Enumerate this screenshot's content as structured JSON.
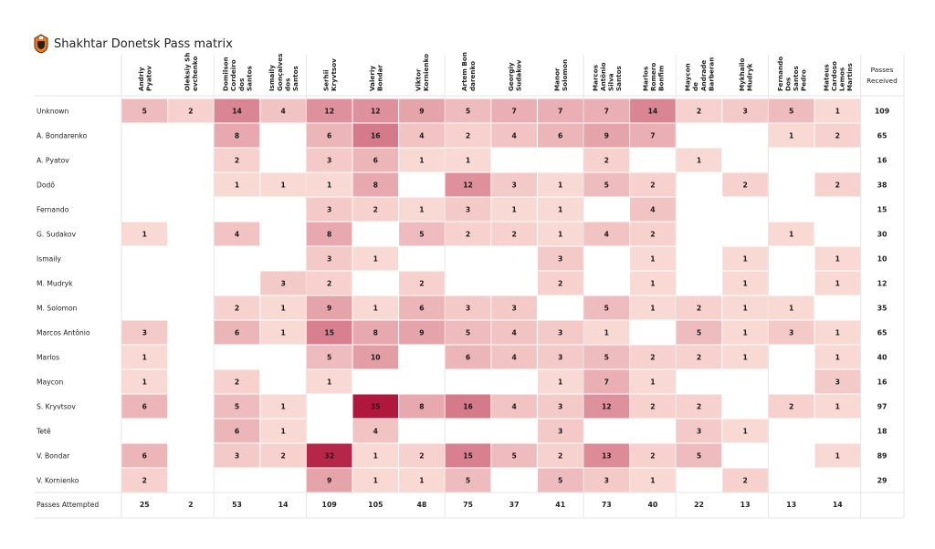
{
  "chart_data": {
    "type": "heatmap",
    "title": "Shakhtar Donetsk Pass matrix",
    "columns": [
      [
        "Andriy",
        "Pyatov"
      ],
      [
        "Oleksiy Sh",
        "evchenko"
      ],
      [
        "Domilson",
        "Cordeiro",
        "dos",
        "Santos"
      ],
      [
        "Ismaily",
        "Gonçalves",
        "dos",
        "Santos"
      ],
      [
        "Serhii",
        "Kryvtsov"
      ],
      [
        "Valeriy",
        "Bondar"
      ],
      [
        "Viktor",
        "Kornienko"
      ],
      [
        "Artem Bon",
        "darenko"
      ],
      [
        "Georgiy",
        "Sudakov"
      ],
      [
        "Manor",
        "Solomon"
      ],
      [
        "Marcos",
        "Antônio",
        "Silva",
        "Santos"
      ],
      [
        "Marlos",
        "Romero",
        "Bonfim"
      ],
      [
        "Maycon",
        "de",
        "Andrade",
        "Barberan"
      ],
      [
        "Mykhailo",
        "Mudryk"
      ],
      [
        "Fernando",
        "Dos",
        "Santos",
        "Pedro"
      ],
      [
        "Mateus",
        "Cardoso",
        "Lemos",
        "Martins"
      ]
    ],
    "received_header": [
      "Passes",
      "Received"
    ],
    "rows": [
      "Unknown",
      "A. Bondarenko",
      "A. Pyatov",
      "Dodô",
      "Fernando",
      "G. Sudakov",
      "Ismaily",
      "M. Mudryk",
      "M. Solomon",
      "Marcos Antônio",
      "Marlos",
      "Maycon",
      "S. Kryvtsov",
      "Tetê",
      "V. Bondar",
      "V. Kornienko"
    ],
    "values": [
      [
        5,
        2,
        14,
        4,
        12,
        12,
        9,
        5,
        7,
        7,
        7,
        14,
        2,
        3,
        5,
        1
      ],
      [
        null,
        null,
        8,
        null,
        6,
        16,
        4,
        2,
        4,
        6,
        9,
        7,
        null,
        null,
        1,
        2
      ],
      [
        null,
        null,
        2,
        null,
        3,
        6,
        1,
        1,
        null,
        null,
        2,
        null,
        1,
        null,
        null,
        null
      ],
      [
        null,
        null,
        1,
        1,
        1,
        8,
        null,
        12,
        3,
        1,
        5,
        2,
        null,
        2,
        null,
        2
      ],
      [
        null,
        null,
        null,
        null,
        3,
        2,
        1,
        3,
        1,
        1,
        null,
        4,
        null,
        null,
        null,
        null
      ],
      [
        1,
        null,
        4,
        null,
        8,
        null,
        5,
        2,
        2,
        1,
        4,
        2,
        null,
        null,
        1,
        null
      ],
      [
        null,
        null,
        null,
        null,
        3,
        1,
        null,
        null,
        null,
        3,
        null,
        1,
        null,
        1,
        null,
        1
      ],
      [
        null,
        null,
        null,
        3,
        2,
        null,
        2,
        null,
        null,
        2,
        null,
        1,
        null,
        1,
        null,
        1
      ],
      [
        null,
        null,
        2,
        1,
        9,
        1,
        6,
        3,
        3,
        null,
        5,
        1,
        2,
        1,
        1,
        null
      ],
      [
        3,
        null,
        6,
        1,
        15,
        8,
        9,
        5,
        4,
        3,
        1,
        null,
        5,
        1,
        3,
        1
      ],
      [
        1,
        null,
        null,
        null,
        5,
        10,
        null,
        6,
        4,
        3,
        5,
        2,
        2,
        1,
        null,
        1
      ],
      [
        1,
        null,
        2,
        null,
        1,
        null,
        null,
        null,
        null,
        1,
        7,
        1,
        null,
        null,
        null,
        3
      ],
      [
        6,
        null,
        5,
        1,
        null,
        35,
        8,
        16,
        4,
        3,
        12,
        2,
        2,
        null,
        2,
        1
      ],
      [
        null,
        null,
        6,
        1,
        null,
        4,
        null,
        null,
        null,
        3,
        null,
        null,
        3,
        1,
        null,
        null
      ],
      [
        6,
        null,
        3,
        2,
        32,
        1,
        2,
        15,
        5,
        2,
        13,
        2,
        5,
        null,
        null,
        1
      ],
      [
        2,
        null,
        null,
        null,
        9,
        1,
        1,
        5,
        null,
        5,
        3,
        1,
        null,
        2,
        null,
        null
      ]
    ],
    "passes_received": [
      109,
      65,
      16,
      38,
      15,
      30,
      10,
      12,
      35,
      65,
      40,
      16,
      97,
      18,
      89,
      29
    ],
    "attempted_label": "Passes Attempted",
    "passes_attempted": [
      25,
      2,
      53,
      14,
      109,
      105,
      48,
      75,
      37,
      41,
      73,
      40,
      22,
      13,
      13,
      14
    ],
    "color_scale": {
      "low": "#fde3dc",
      "high": "#b0173d",
      "max": 35
    }
  }
}
